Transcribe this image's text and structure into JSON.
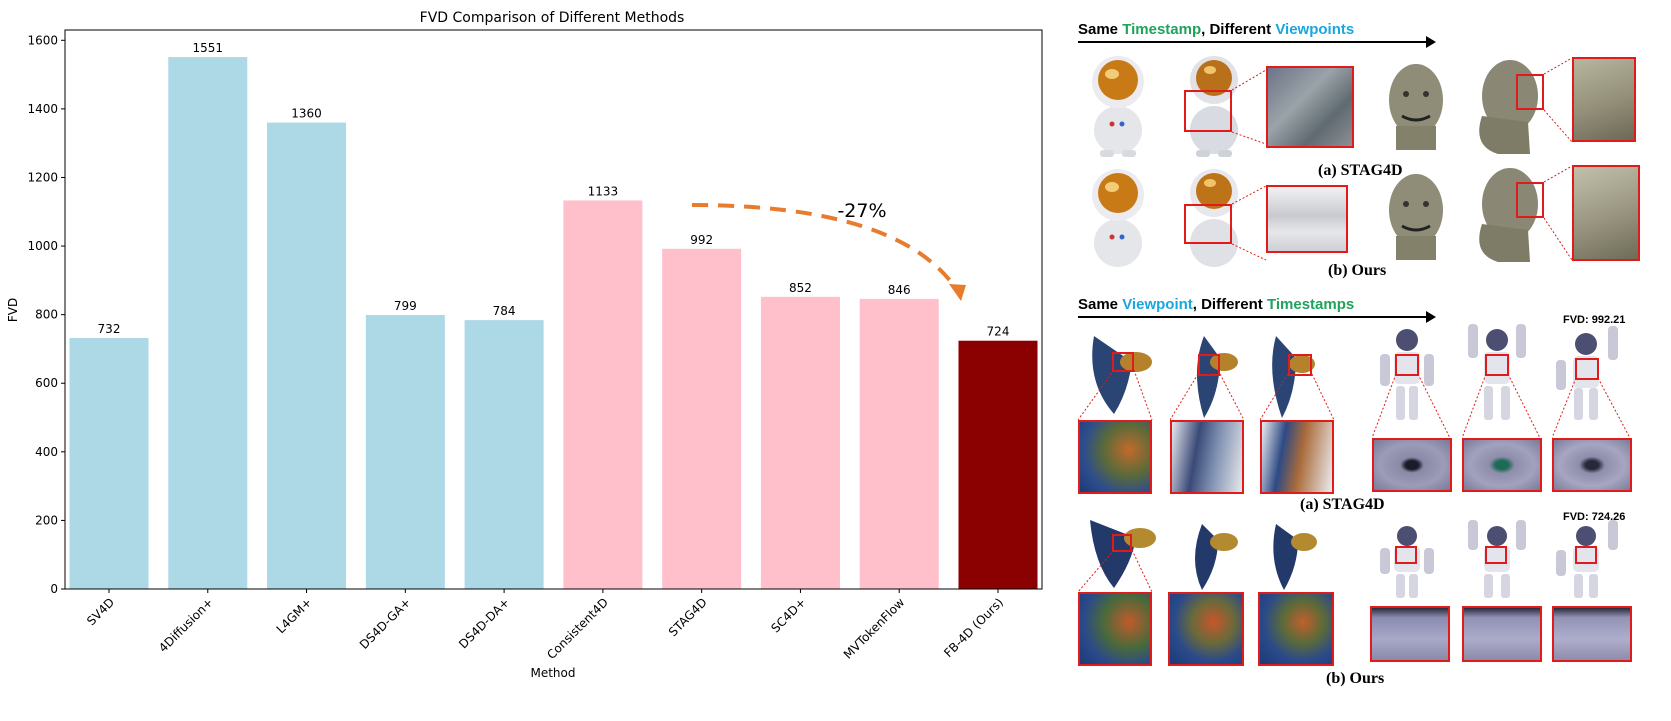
{
  "chart_data": {
    "type": "bar",
    "title": "FVD Comparison of Different Methods",
    "xlabel": "Method",
    "ylabel": "FVD",
    "ylim": [
      0,
      1630
    ],
    "yticks": [
      0,
      200,
      400,
      600,
      800,
      1000,
      1200,
      1400,
      1600
    ],
    "categories": [
      "SV4D",
      "4Diffusion+",
      "L4GM+",
      "DS4D-GA+",
      "DS4D-DA+",
      "Consistent4D",
      "STAG4D",
      "SC4D+",
      "MVTokenFlow",
      "FB-4D (Ours)"
    ],
    "values": [
      732,
      1551,
      1360,
      799,
      784,
      1133,
      992,
      852,
      846,
      724
    ],
    "colors": [
      "#add8e6",
      "#add8e6",
      "#add8e6",
      "#add8e6",
      "#add8e6",
      "#ffc0cb",
      "#ffc0cb",
      "#ffc0cb",
      "#ffc0cb",
      "#8b0000"
    ],
    "annotation": {
      "text": "-27%",
      "from_category": "STAG4D",
      "to_category": "FB-4D (Ours)",
      "color": "#e87b2e"
    },
    "grid": false,
    "legend": "none"
  },
  "panel": {
    "top_header": {
      "part1": "Same ",
      "part2": "Timestamp",
      "part3": ", Different ",
      "part4": "Viewpoints"
    },
    "bottom_header": {
      "part1": "Same ",
      "part2": "Viewpoint",
      "part3": ", Different ",
      "part4": "Timestamps"
    },
    "captions": {
      "top_a": "(a) STAG4D",
      "top_b": "(b) Ours",
      "bottom_a": "(a) STAG4D",
      "bottom_b": "(b) Ours"
    },
    "fvd_stag4d": "FVD: 992.21",
    "fvd_ours": "FVD: 724.26",
    "highlight_colors": {
      "green": "#1fa35a",
      "blue": "#1aa6e0",
      "crop": "#e01b1b"
    }
  }
}
